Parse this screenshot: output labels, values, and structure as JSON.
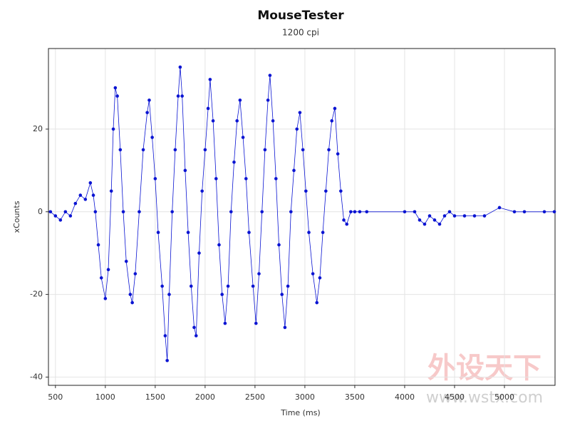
{
  "chart_data": {
    "type": "line",
    "title": "MouseTester",
    "subtitle": "1200 cpi",
    "x_label": "Time (ms)",
    "y_label": "xCounts",
    "color": "#0a14d2",
    "grid": true,
    "watermark": [
      "外设天下",
      "www.wstx.com"
    ],
    "xlim": [
      430,
      5507
    ],
    "ylim": [
      -42,
      39.5
    ],
    "xticks": [
      500,
      1000,
      1500,
      2000,
      2500,
      3000,
      3500,
      4000,
      4500,
      5000
    ],
    "yticks": [
      -40,
      -20,
      0,
      20
    ],
    "series": [
      {
        "name": "xCounts",
        "color": "#0a14d2",
        "x": [
          450,
          500,
          550,
          600,
          650,
          700,
          750,
          800,
          850,
          880,
          900,
          930,
          960,
          1000,
          1030,
          1060,
          1080,
          1100,
          1120,
          1150,
          1180,
          1210,
          1250,
          1270,
          1300,
          1340,
          1380,
          1420,
          1440,
          1470,
          1500,
          1530,
          1570,
          1600,
          1620,
          1640,
          1670,
          1700,
          1730,
          1750,
          1770,
          1800,
          1830,
          1860,
          1890,
          1910,
          1940,
          1970,
          2000,
          2030,
          2050,
          2080,
          2110,
          2140,
          2170,
          2200,
          2230,
          2260,
          2290,
          2320,
          2350,
          2380,
          2410,
          2440,
          2480,
          2510,
          2540,
          2570,
          2600,
          2630,
          2650,
          2680,
          2710,
          2740,
          2770,
          2800,
          2830,
          2860,
          2890,
          2920,
          2950,
          2980,
          3010,
          3040,
          3080,
          3120,
          3150,
          3180,
          3210,
          3240,
          3270,
          3300,
          3330,
          3360,
          3390,
          3420,
          3460,
          3500,
          3550,
          3620,
          4000,
          4100,
          4150,
          4200,
          4250,
          4300,
          4350,
          4400,
          4450,
          4500,
          4600,
          4700,
          4800,
          4950,
          5100,
          5200,
          5400,
          5500
        ],
        "values": [
          0,
          -1,
          -2,
          0,
          -1,
          2,
          4,
          3,
          7,
          4,
          0,
          -8,
          -16,
          -21,
          -14,
          5,
          20,
          30,
          28,
          15,
          0,
          -12,
          -20,
          -22,
          -15,
          0,
          15,
          24,
          27,
          18,
          8,
          -5,
          -18,
          -30,
          -36,
          -20,
          0,
          15,
          28,
          35,
          28,
          10,
          -5,
          -18,
          -28,
          -30,
          -10,
          5,
          15,
          25,
          32,
          22,
          8,
          -8,
          -20,
          -27,
          -18,
          0,
          12,
          22,
          27,
          18,
          8,
          -5,
          -18,
          -27,
          -15,
          0,
          15,
          27,
          33,
          22,
          8,
          -8,
          -20,
          -28,
          -18,
          0,
          10,
          20,
          24,
          15,
          5,
          -5,
          -15,
          -22,
          -16,
          -5,
          5,
          15,
          22,
          25,
          14,
          5,
          -2,
          -3,
          0,
          0,
          0,
          0,
          0,
          0,
          -2,
          -3,
          -1,
          -2,
          -3,
          -1,
          0,
          -1,
          -1,
          -1,
          -1,
          1,
          0,
          0,
          0,
          0
        ]
      }
    ]
  }
}
